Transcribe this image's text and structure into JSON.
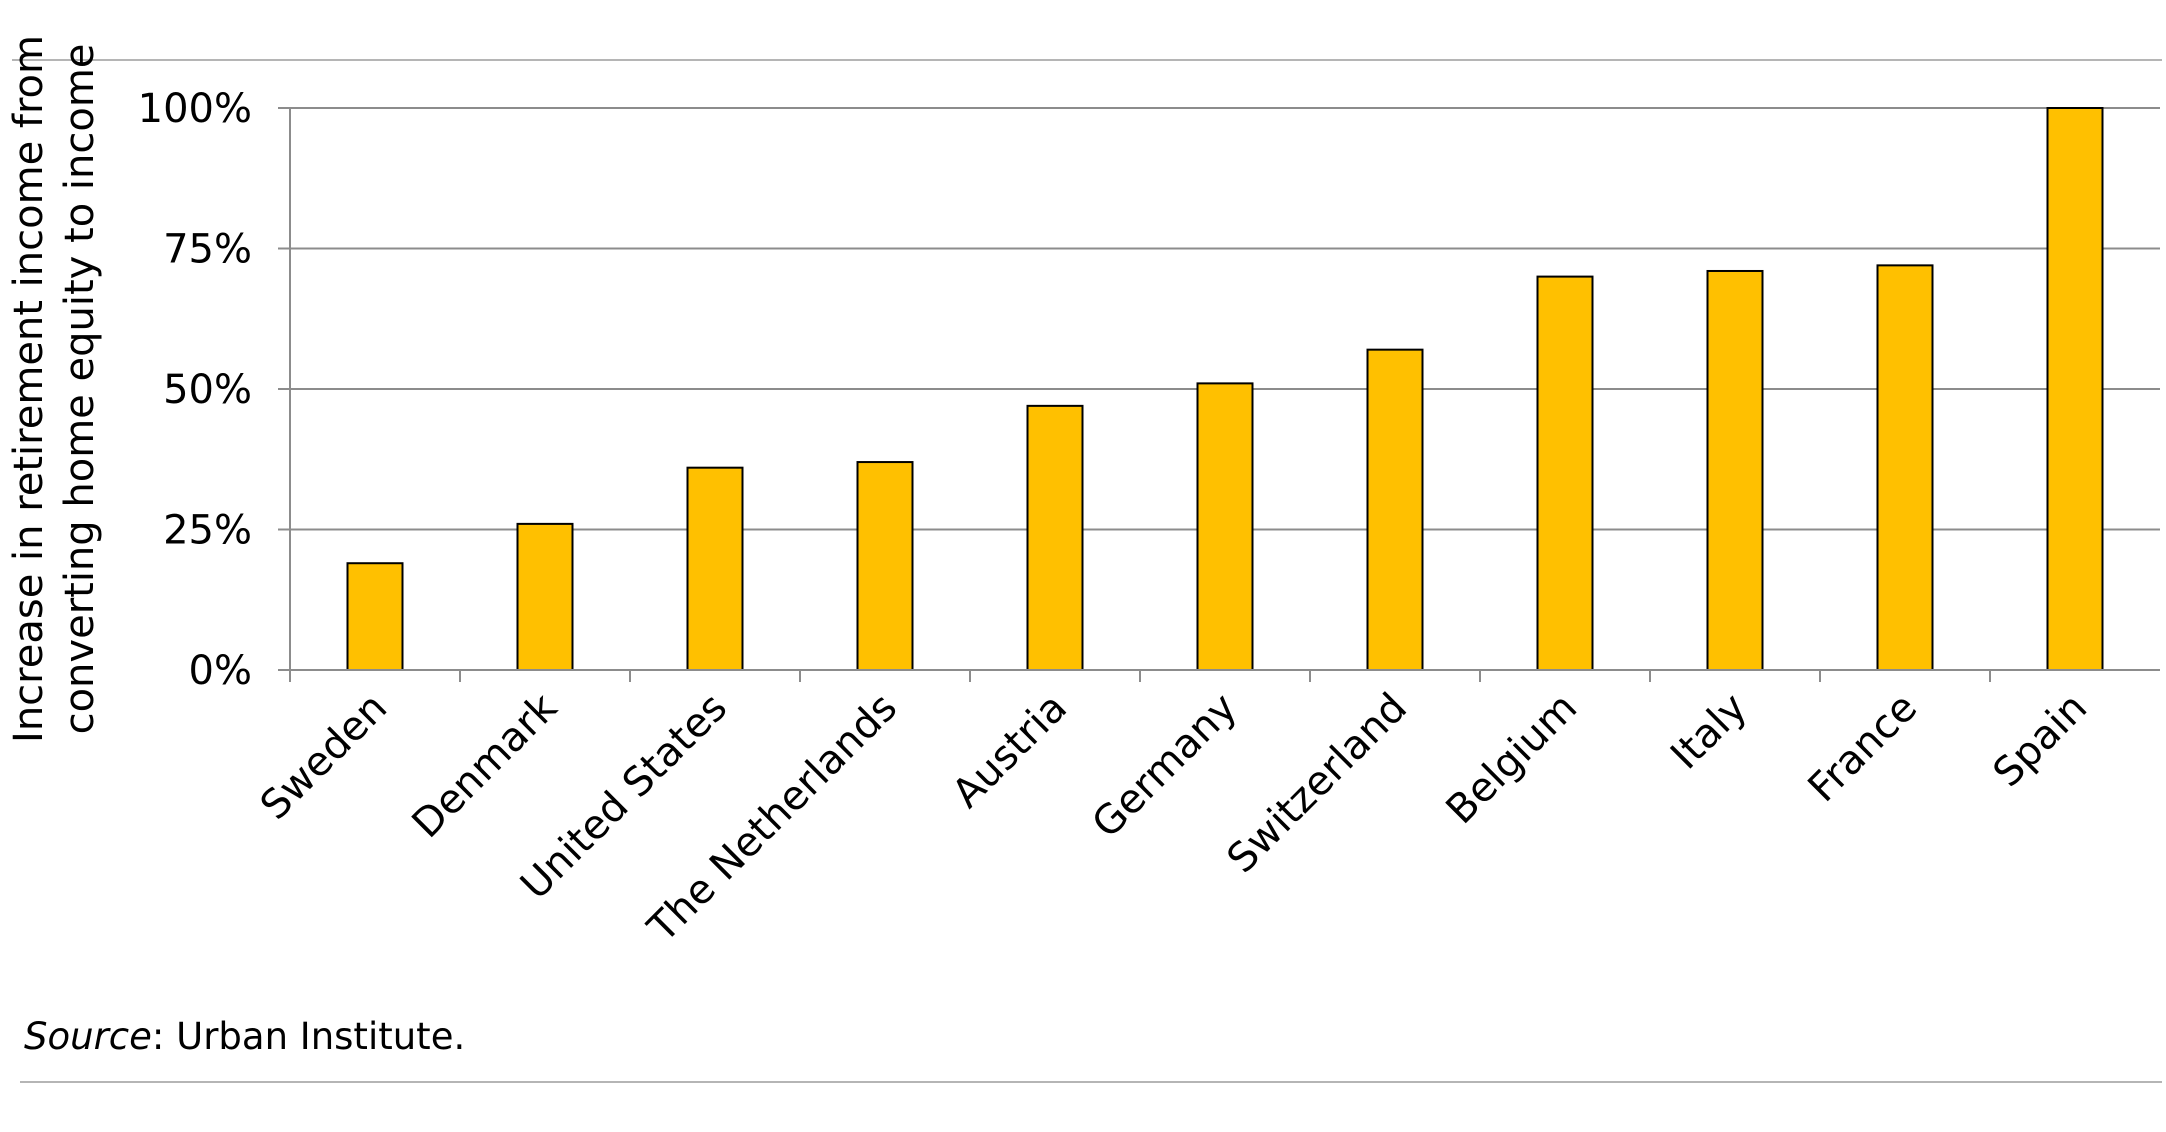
{
  "chart_data": {
    "type": "bar",
    "title": "",
    "xlabel": "",
    "ylabel": "Increase in retirement income from converting home equity to income",
    "ylabel_lines": [
      "Increase in retirement income from",
      "converting home equity to income"
    ],
    "categories": [
      "Sweden",
      "Denmark",
      "United States",
      "The Netherlands",
      "Austria",
      "Germany",
      "Switzerland",
      "Belgium",
      "Italy",
      "France",
      "Spain"
    ],
    "values": [
      19,
      26,
      36,
      37,
      47,
      51,
      57,
      70,
      71,
      72,
      100
    ],
    "ylim": [
      0,
      100
    ],
    "yticks": [
      0,
      25,
      50,
      75,
      100
    ],
    "ytick_labels": [
      "0%",
      "25%",
      "50%",
      "75%",
      "100%"
    ],
    "grid": true,
    "legend": "none",
    "bar_color": "#FFC000",
    "bar_edge_color": "#000000"
  },
  "footer": {
    "source_label": "Source",
    "source_text": ": Urban Institute."
  }
}
